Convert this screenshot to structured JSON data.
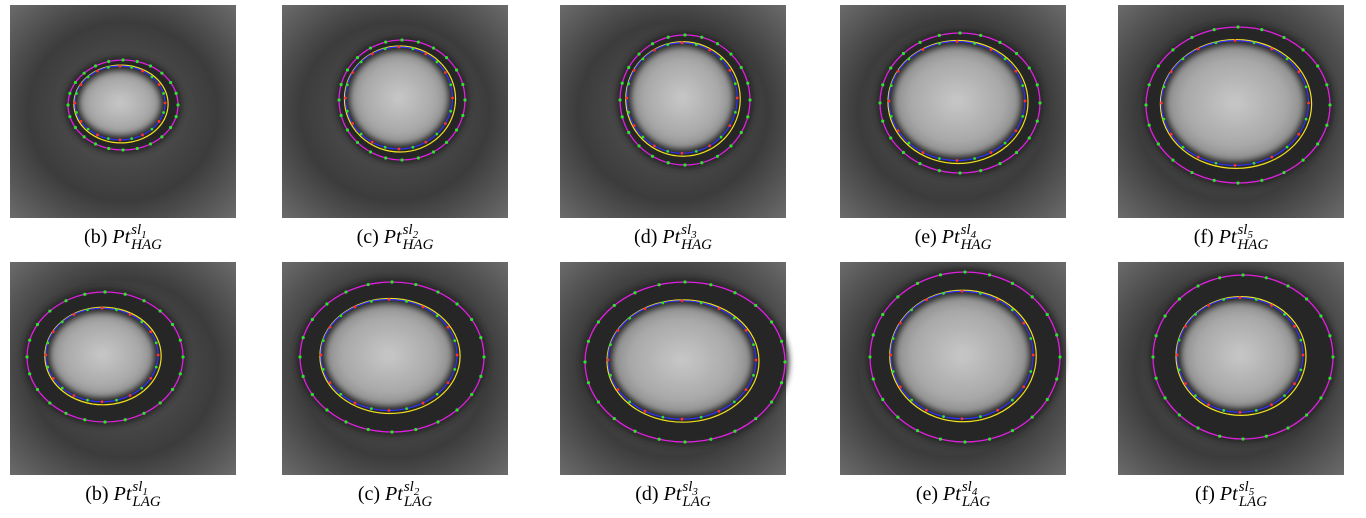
{
  "figure": {
    "rows": [
      {
        "panels": [
          {
            "label": "(b)",
            "base": "Pt",
            "sup": "sl",
            "sup_sub": "1",
            "sub": "HAG"
          },
          {
            "label": "(c)",
            "base": "Pt",
            "sup": "sl",
            "sup_sub": "2",
            "sub": "HAG"
          },
          {
            "label": "(d)",
            "base": "Pt",
            "sup": "sl",
            "sup_sub": "3",
            "sub": "HAG"
          },
          {
            "label": "(e)",
            "base": "Pt",
            "sup": "sl",
            "sup_sub": "4",
            "sub": "HAG"
          },
          {
            "label": "(f)",
            "base": "Pt",
            "sup": "sl",
            "sup_sub": "5",
            "sub": "HAG"
          }
        ]
      },
      {
        "panels": [
          {
            "label": "(b)",
            "base": "Pt",
            "sup": "sl",
            "sup_sub": "1",
            "sub": "LAG"
          },
          {
            "label": "(c)",
            "base": "Pt",
            "sup": "sl",
            "sup_sub": "2",
            "sub": "LAG"
          },
          {
            "label": "(d)",
            "base": "Pt",
            "sup": "sl",
            "sup_sub": "3",
            "sub": "LAG"
          },
          {
            "label": "(e)",
            "base": "Pt",
            "sup": "sl",
            "sup_sub": "4",
            "sub": "LAG"
          },
          {
            "label": "(f)",
            "base": "Pt",
            "sup": "sl",
            "sup_sub": "5",
            "sub": "LAG"
          }
        ]
      }
    ]
  }
}
